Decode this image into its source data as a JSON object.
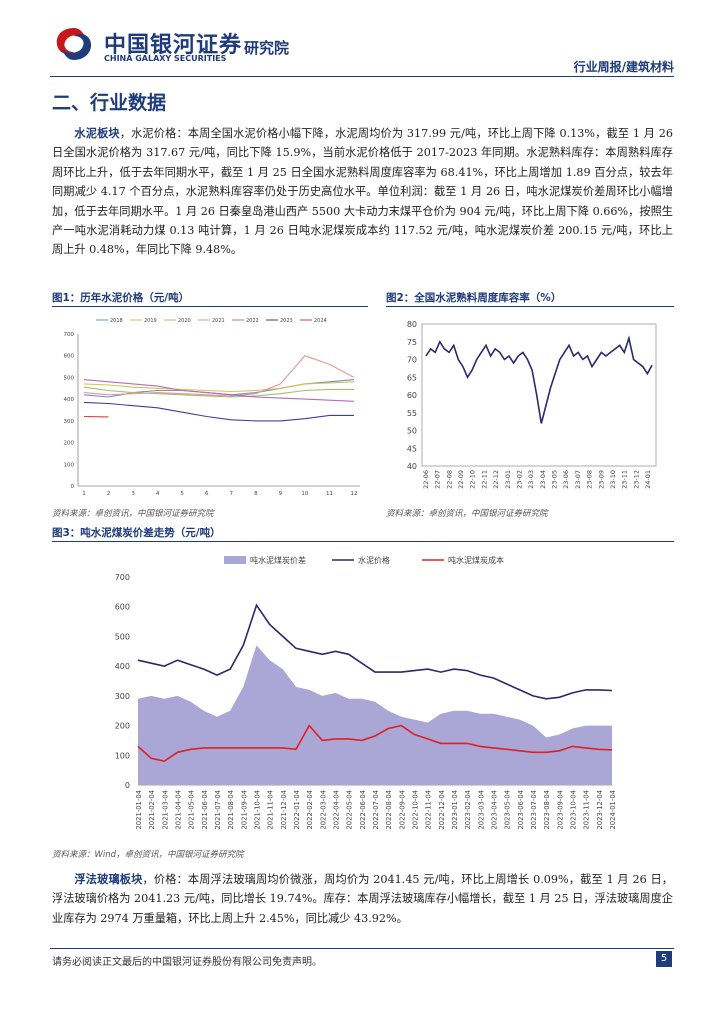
{
  "header": {
    "logo_cn": "中国银河证券",
    "logo_en": "CHINA GALAXY SECURITIES",
    "institute": "研究院",
    "report_type": "行业周报/建筑材料"
  },
  "section_title": "二、行业数据",
  "paragraph1": {
    "label": "水泥板块",
    "text": "，水泥价格：本周全国水泥价格小幅下降，水泥周均价为 317.99 元/吨，环比上周下降 0.13%，截至 1 月 26 日全国水泥价格为 317.67 元/吨，同比下降 15.9%，当前水泥价格低于 2017-2023 年同期。水泥熟料库存：本周熟料库存周环比上升，低于去年同期水平，截至 1 月 25 日全国水泥熟料周度库容率为 68.41%，环比上周增加 1.89 百分点，较去年同期减少 4.17 个百分点，水泥熟料库容率仍处于历史高位水平。单位利润：截至 1 月 26 日，吨水泥煤炭价差周环比小幅增加，低于去年同期水平。1 月 26 日秦皇岛港山西产 5500 大卡动力末煤平仓价为 904 元/吨，环比上周下降 0.66%，按照生产一吨水泥消耗动力煤 0.13 吨计算，1 月 26 日吨水泥煤炭成本约 117.52 元/吨，吨水泥煤炭价差 200.15 元/吨，环比上周上升 0.48%，年同比下降 9.48%。"
  },
  "figure1": {
    "title": "图1：历年水泥价格（元/吨）",
    "source": "资料来源：卓创资讯，中国银河证券研究院"
  },
  "figure2": {
    "title": "图2：全国水泥熟料周度库容率（%）",
    "source": "资料来源：卓创资讯，中国银河证券研究院"
  },
  "figure3": {
    "title": "图3：吨水泥煤炭价差走势（元/吨）",
    "source": "资料来源：Wind，卓创资讯，中国银河证券研究院"
  },
  "paragraph2": {
    "label": "浮法玻璃板块",
    "text": "，价格：本周浮法玻璃周均价微涨，周均价为 2041.45 元/吨，环比上周增长 0.09%，截至 1 月 26 日，浮法玻璃价格为 2041.23 元/吨，同比增长 19.74%。库存：本周浮法玻璃库存小幅增长，截至 1 月 25 日，浮法玻璃周度企业库存为 2974 万重量箱，环比上周上升 2.45%，同比减少 43.92%。"
  },
  "footer": {
    "disclaimer": "请务必阅读正文最后的中国银河证券股份有限公司免责声明。",
    "page_number": "5"
  },
  "colors": {
    "brand_blue": "#1f3b7a",
    "brand_red": "#c8161d",
    "area_fill": "#aaa6d6",
    "line_navy": "#2a2a6e",
    "line_red": "#e02020"
  },
  "chart_data": [
    {
      "type": "line",
      "title": "历年水泥价格（元/吨）",
      "x_ticks": [
        "1",
        "2",
        "3",
        "4",
        "5",
        "6",
        "7",
        "8",
        "9",
        "10",
        "11",
        "12"
      ],
      "ylim": [
        0,
        700
      ],
      "y_ticks": [
        "0",
        "100",
        "200",
        "300",
        "400",
        "500",
        "600",
        "700"
      ],
      "x": [
        1,
        2,
        3,
        4,
        5,
        6,
        7,
        8,
        9,
        10,
        11,
        12
      ],
      "series": [
        {
          "name": "2018",
          "color": "#6a8fd4",
          "values": [
            420,
            410,
            430,
            440,
            440,
            430,
            420,
            430,
            450,
            470,
            480,
            490
          ]
        },
        {
          "name": "2019",
          "color": "#d9c24a",
          "values": [
            470,
            465,
            455,
            450,
            445,
            440,
            435,
            440,
            450,
            470,
            475,
            480
          ]
        },
        {
          "name": "2020",
          "color": "#9cc36a",
          "values": [
            455,
            440,
            430,
            425,
            420,
            415,
            410,
            415,
            425,
            440,
            445,
            445
          ]
        },
        {
          "name": "2021",
          "color": "#e79696",
          "values": [
            430,
            420,
            425,
            430,
            425,
            420,
            415,
            425,
            470,
            600,
            560,
            500
          ]
        },
        {
          "name": "2022",
          "color": "#b86bb8",
          "values": [
            490,
            480,
            470,
            460,
            440,
            430,
            420,
            410,
            405,
            400,
            395,
            390
          ]
        },
        {
          "name": "2023",
          "color": "#3f3f99",
          "values": [
            385,
            380,
            370,
            360,
            340,
            320,
            305,
            300,
            300,
            310,
            325,
            325
          ]
        },
        {
          "name": "2024",
          "color": "#e13838",
          "values": [
            320,
            318,
            null,
            null,
            null,
            null,
            null,
            null,
            null,
            null,
            null,
            null
          ]
        }
      ]
    },
    {
      "type": "line",
      "title": "全国水泥熟料周度库容率（%）",
      "ylim": [
        40,
        80
      ],
      "y_ticks": [
        "40",
        "45",
        "50",
        "55",
        "60",
        "65",
        "70",
        "75",
        "80"
      ],
      "x_ticks": [
        "22-06",
        "22-07",
        "22-08",
        "22-09",
        "22-10",
        "22-11",
        "22-12",
        "23-01",
        "23-02",
        "23-03",
        "23-04",
        "23-05",
        "23-06",
        "23-07",
        "23-08",
        "23-09",
        "23-10",
        "23-11",
        "23-12",
        "24-01"
      ],
      "series": [
        {
          "name": "库容率",
          "color": "#2a2a6e",
          "values": [
            71,
            73,
            72,
            75,
            73,
            72,
            74,
            70,
            68,
            65,
            67,
            70,
            72,
            74,
            71,
            73,
            72,
            70,
            71,
            69,
            71,
            72,
            70,
            67,
            60,
            52,
            57,
            62,
            66,
            70,
            72,
            74,
            71,
            72,
            70,
            71,
            68,
            70,
            72,
            71,
            72,
            73,
            74,
            72,
            76,
            70,
            69,
            68,
            66,
            68.4
          ]
        }
      ]
    },
    {
      "type": "area",
      "title": "吨水泥煤炭价差走势（元/吨）",
      "ylim": [
        0,
        700
      ],
      "y_ticks": [
        "0",
        "100",
        "200",
        "300",
        "400",
        "500",
        "600",
        "700"
      ],
      "legend": [
        "吨水泥煤炭价差",
        "水泥价格",
        "吨水泥煤炭成本"
      ],
      "x_ticks": [
        "2021-01-04",
        "2021-02-04",
        "2021-03-04",
        "2021-04-04",
        "2021-05-04",
        "2021-06-04",
        "2021-07-04",
        "2021-08-04",
        "2021-09-04",
        "2021-10-04",
        "2021-11-04",
        "2021-12-04",
        "2022-01-04",
        "2022-02-04",
        "2022-03-04",
        "2022-04-04",
        "2022-05-04",
        "2022-06-04",
        "2022-07-04",
        "2022-08-04",
        "2022-09-04",
        "2022-10-04",
        "2022-11-04",
        "2022-12-04",
        "2023-01-04",
        "2023-02-04",
        "2023-03-04",
        "2023-04-04",
        "2023-05-04",
        "2023-06-04",
        "2023-07-04",
        "2023-08-04",
        "2023-09-04",
        "2023-10-04",
        "2023-11-04",
        "2023-12-04",
        "2024-01-04"
      ],
      "series": [
        {
          "name": "吨水泥煤炭价差",
          "color": "#aaa6d6",
          "values": [
            290,
            300,
            290,
            300,
            280,
            250,
            230,
            250,
            330,
            470,
            420,
            390,
            330,
            320,
            300,
            310,
            290,
            290,
            280,
            250,
            230,
            220,
            210,
            240,
            250,
            250,
            240,
            240,
            230,
            220,
            200,
            160,
            170,
            190,
            200,
            200,
            200
          ]
        },
        {
          "name": "水泥价格",
          "color": "#2a2a6e",
          "values": [
            420,
            410,
            400,
            420,
            405,
            390,
            370,
            390,
            470,
            605,
            540,
            500,
            460,
            450,
            440,
            450,
            440,
            410,
            380,
            380,
            380,
            385,
            390,
            380,
            390,
            385,
            370,
            360,
            340,
            320,
            300,
            290,
            295,
            310,
            320,
            320,
            318
          ]
        },
        {
          "name": "吨水泥煤炭成本",
          "color": "#e02020",
          "values": [
            130,
            90,
            80,
            110,
            120,
            125,
            125,
            125,
            125,
            125,
            125,
            125,
            120,
            200,
            150,
            155,
            155,
            150,
            165,
            190,
            200,
            170,
            155,
            140,
            140,
            140,
            130,
            125,
            120,
            115,
            110,
            110,
            115,
            130,
            125,
            120,
            118
          ]
        }
      ]
    }
  ]
}
